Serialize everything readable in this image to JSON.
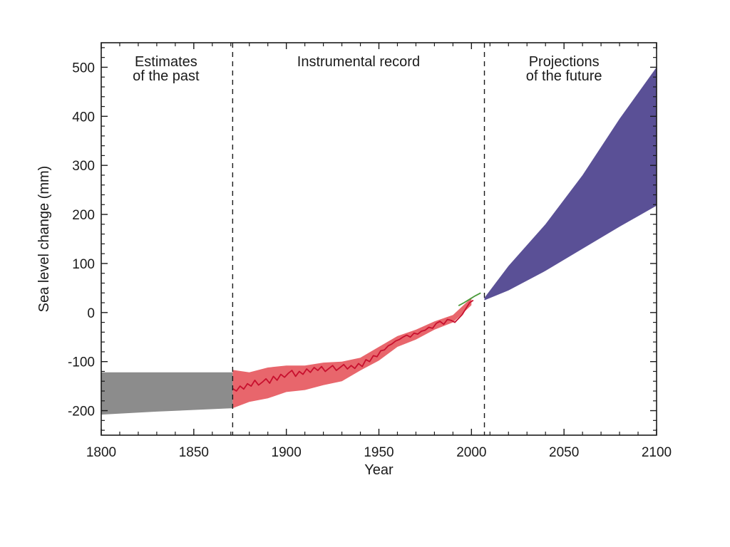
{
  "chart_data": {
    "type": "area",
    "xlabel": "Year",
    "ylabel": "Sea level change (mm)",
    "xlim": [
      1800,
      2100
    ],
    "ylim": [
      -250,
      550
    ],
    "x_ticks": [
      1800,
      1850,
      1900,
      1950,
      2000,
      2050,
      2100
    ],
    "y_ticks": [
      -200,
      -100,
      0,
      100,
      200,
      300,
      400,
      500
    ],
    "grid": false,
    "colors": {
      "past": "#8c8c8c",
      "instrumental_band": "#e8666c",
      "instrumental_line": "#c8102e",
      "satellite_line": "#4a9a3a",
      "projection": "#5a5096",
      "frame": "#1a1a1a"
    },
    "dividers": [
      1871,
      2007
    ],
    "regions": [
      {
        "lines": [
          "Estimates",
          "of the past"
        ],
        "x": 1835
      },
      {
        "lines": [
          "Instrumental record"
        ],
        "x": 1939
      },
      {
        "lines": [
          "Projections",
          "of the future"
        ],
        "x": 2050
      }
    ],
    "series": [
      {
        "kind": "band",
        "color_key": "past",
        "x": [
          1800,
          1830,
          1871
        ],
        "upper": [
          -122,
          -122,
          -122
        ],
        "lower": [
          -208,
          -202,
          -195
        ]
      },
      {
        "kind": "band",
        "color_key": "instrumental_band",
        "x": [
          1871,
          1880,
          1890,
          1900,
          1910,
          1920,
          1930,
          1940,
          1950,
          1960,
          1970,
          1980,
          1990,
          2000
        ],
        "upper": [
          -117,
          -122,
          -112,
          -108,
          -108,
          -102,
          -100,
          -92,
          -70,
          -48,
          -35,
          -18,
          -5,
          30
        ],
        "lower": [
          -195,
          -182,
          -175,
          -162,
          -158,
          -148,
          -140,
          -118,
          -98,
          -70,
          -55,
          -35,
          -20,
          15
        ]
      },
      {
        "kind": "line",
        "color_key": "instrumental_line",
        "x": [
          1871,
          1873,
          1875,
          1877,
          1879,
          1881,
          1883,
          1885,
          1887,
          1889,
          1891,
          1893,
          1895,
          1897,
          1899,
          1901,
          1903,
          1905,
          1907,
          1909,
          1911,
          1913,
          1915,
          1917,
          1919,
          1921,
          1923,
          1925,
          1927,
          1929,
          1931,
          1933,
          1935,
          1937,
          1939,
          1941,
          1943,
          1945,
          1947,
          1949,
          1951,
          1953,
          1955,
          1957,
          1959,
          1961,
          1963,
          1965,
          1967,
          1969,
          1971,
          1973,
          1975,
          1977,
          1979,
          1981,
          1983,
          1985,
          1987,
          1989,
          1991,
          1993,
          1995,
          1997,
          1999,
          2001
        ],
        "y": [
          -155,
          -160,
          -150,
          -156,
          -145,
          -150,
          -138,
          -148,
          -142,
          -135,
          -144,
          -130,
          -138,
          -126,
          -132,
          -124,
          -118,
          -130,
          -120,
          -126,
          -115,
          -122,
          -112,
          -118,
          -110,
          -120,
          -114,
          -108,
          -118,
          -112,
          -106,
          -115,
          -108,
          -114,
          -104,
          -110,
          -96,
          -100,
          -88,
          -90,
          -78,
          -76,
          -68,
          -64,
          -58,
          -55,
          -50,
          -46,
          -50,
          -42,
          -44,
          -38,
          -36,
          -30,
          -32,
          -22,
          -18,
          -24,
          -14,
          -16,
          -20,
          -12,
          -4,
          8,
          20,
          25
        ]
      },
      {
        "kind": "line",
        "color_key": "satellite_line",
        "x": [
          1993,
          1996,
          1999,
          2002,
          2005
        ],
        "y": [
          14,
          20,
          27,
          34,
          40
        ]
      },
      {
        "kind": "band",
        "color_key": "projection",
        "x": [
          2007,
          2020,
          2040,
          2060,
          2080,
          2100
        ],
        "upper": [
          30,
          95,
          180,
          280,
          395,
          500
        ],
        "lower": [
          25,
          45,
          85,
          130,
          175,
          218
        ]
      }
    ]
  }
}
